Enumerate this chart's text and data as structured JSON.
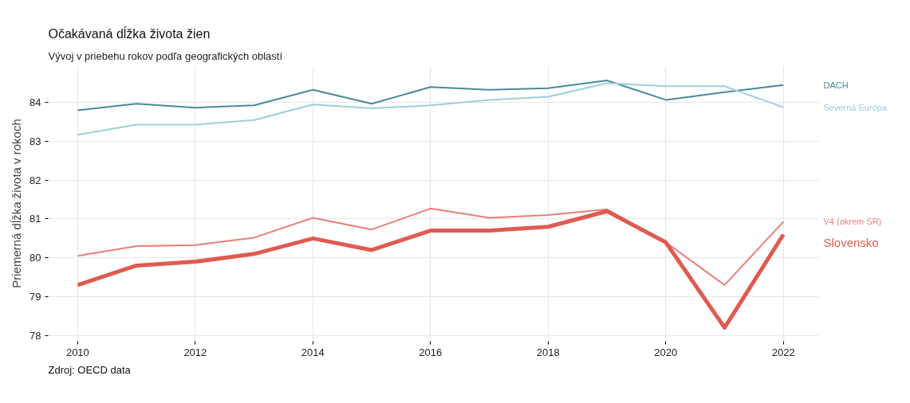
{
  "chart_data": {
    "type": "line",
    "title": "Očakávaná dĺžka života žien",
    "subtitle": "Vývoj v priebehu rokov podľa geografických oblastí",
    "ylabel": "Priemerná dĺžka života v rokoch",
    "annotations": [
      "Zdroj: OECD data"
    ],
    "x": [
      2010,
      2011,
      2012,
      2013,
      2014,
      2015,
      2016,
      2017,
      2018,
      2019,
      2020,
      2021,
      2022
    ],
    "series": [
      {
        "name": "DACH",
        "color": "#4a8a9a",
        "values": [
          83.8,
          83.97,
          83.87,
          83.93,
          84.33,
          83.97,
          84.4,
          84.33,
          84.37,
          84.57,
          84.07,
          84.27,
          84.45
        ]
      },
      {
        "name": "Severná Európa",
        "color": "#9ccfdc",
        "values": [
          83.17,
          83.43,
          83.43,
          83.55,
          83.95,
          83.85,
          83.93,
          84.07,
          84.15,
          84.5,
          84.42,
          84.42,
          83.88
        ]
      },
      {
        "name": "V4 (okrem SR)",
        "color": "#e87f77",
        "values": [
          80.05,
          80.3,
          80.33,
          80.52,
          81.03,
          80.73,
          81.27,
          81.03,
          81.1,
          81.25,
          80.4,
          79.3,
          80.93
        ]
      },
      {
        "name": "Slovensko",
        "color": "#e05a50",
        "values": [
          79.3,
          79.8,
          79.9,
          80.1,
          80.5,
          80.2,
          80.7,
          80.7,
          80.8,
          81.2,
          80.4,
          78.2,
          80.6
        ]
      }
    ],
    "xlim": [
      2009.5,
      2022.6
    ],
    "ylim": [
      77.85,
      84.95
    ],
    "xticks": [
      2010,
      2012,
      2014,
      2016,
      2018,
      2020,
      2022
    ],
    "yticks": [
      78,
      79,
      80,
      81,
      82,
      83,
      84
    ],
    "grid": true,
    "marker": "none",
    "line_style": "solid"
  }
}
